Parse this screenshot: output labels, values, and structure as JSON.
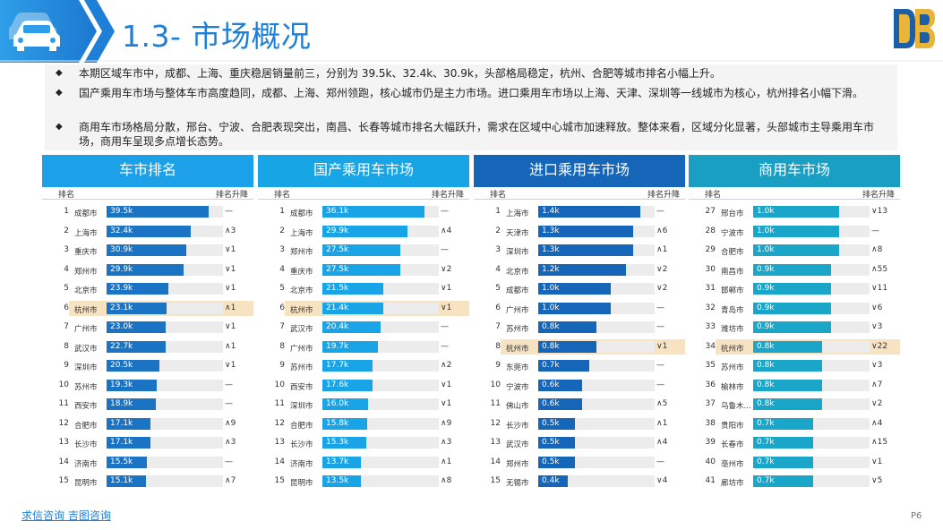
{
  "header": {
    "title": "1.3- 市场概况"
  },
  "notes": [
    "本期区域车市中，成都、上海、重庆稳居销量前三，分别为 39.5k、32.4k、30.9k，头部格局稳定，杭州、合肥等城市排名小幅上升。",
    "国产乘用车市场与整体车市高度趋同，成都、上海、郑州领跑，核心城市仍是主力市场。进口乘用车市场以上海、天津、深圳等一线城市为核心，杭州排名小幅下滑。",
    "商用车市场格局分散，邢台、宁波、合肥表现突出，南昌、长春等城市排名大幅跃升，需求在区域中心城市加速释放。整体来看，区域分化显著，头部城市主导乘用车市场，商用车呈现多点增长态势。"
  ],
  "icons": {
    "car": "car-icon",
    "logo": "brand-logo-icon",
    "bullet": "diamond-bullet-icon"
  },
  "colors": {
    "accent": "#1e7fd6",
    "highlight": "#f7e3c2"
  },
  "chart_data": [
    {
      "type": "bar",
      "title": "车市排名",
      "rank_label": "排名",
      "change_label": "排名升降",
      "header_color": "#1ca0e8",
      "bar_color": "#1b73c4",
      "highlight_city": "杭州市",
      "xlim": [
        0,
        45
      ],
      "rows": [
        {
          "rank": "1",
          "city": "成都市",
          "value": 39.5,
          "label": "39.5k",
          "change": "—"
        },
        {
          "rank": "2",
          "city": "上海市",
          "value": 32.4,
          "label": "32.4k",
          "change": "∧3"
        },
        {
          "rank": "3",
          "city": "重庆市",
          "value": 30.9,
          "label": "30.9k",
          "change": "∨1"
        },
        {
          "rank": "4",
          "city": "郑州市",
          "value": 29.9,
          "label": "29.9k",
          "change": "∨1"
        },
        {
          "rank": "5",
          "city": "北京市",
          "value": 23.9,
          "label": "23.9k",
          "change": "∨1"
        },
        {
          "rank": "6",
          "city": "杭州市",
          "value": 23.1,
          "label": "23.1k",
          "change": "∧1"
        },
        {
          "rank": "7",
          "city": "广州市",
          "value": 23.0,
          "label": "23.0k",
          "change": "∨1"
        },
        {
          "rank": "8",
          "city": "武汉市",
          "value": 22.7,
          "label": "22.7k",
          "change": "∧1"
        },
        {
          "rank": "9",
          "city": "深圳市",
          "value": 20.5,
          "label": "20.5k",
          "change": "∨1"
        },
        {
          "rank": "10",
          "city": "苏州市",
          "value": 19.3,
          "label": "19.3k",
          "change": "—"
        },
        {
          "rank": "11",
          "city": "西安市",
          "value": 18.9,
          "label": "18.9k",
          "change": "—"
        },
        {
          "rank": "12",
          "city": "合肥市",
          "value": 17.1,
          "label": "17.1k",
          "change": "∧9"
        },
        {
          "rank": "13",
          "city": "长沙市",
          "value": 17.1,
          "label": "17.1k",
          "change": "∧3"
        },
        {
          "rank": "14",
          "city": "济南市",
          "value": 15.5,
          "label": "15.5k",
          "change": "—"
        },
        {
          "rank": "15",
          "city": "昆明市",
          "value": 15.1,
          "label": "15.1k",
          "change": "∧7"
        }
      ]
    },
    {
      "type": "bar",
      "title": "国产乘用车市场",
      "rank_label": "排名",
      "change_label": "排名升降",
      "header_color": "#17a5e6",
      "bar_color": "#1aa4e8",
      "highlight_city": "杭州市",
      "xlim": [
        0,
        41
      ],
      "rows": [
        {
          "rank": "1",
          "city": "成都市",
          "value": 36.1,
          "label": "36.1k",
          "change": "—"
        },
        {
          "rank": "2",
          "city": "上海市",
          "value": 29.9,
          "label": "29.9k",
          "change": "∧4"
        },
        {
          "rank": "3",
          "city": "郑州市",
          "value": 27.5,
          "label": "27.5k",
          "change": "—"
        },
        {
          "rank": "4",
          "city": "重庆市",
          "value": 27.5,
          "label": "27.5k",
          "change": "∨2"
        },
        {
          "rank": "5",
          "city": "北京市",
          "value": 21.5,
          "label": "21.5k",
          "change": "∨1"
        },
        {
          "rank": "6",
          "city": "杭州市",
          "value": 21.4,
          "label": "21.4k",
          "change": "∨1"
        },
        {
          "rank": "7",
          "city": "武汉市",
          "value": 20.4,
          "label": "20.4k",
          "change": "—"
        },
        {
          "rank": "8",
          "city": "广州市",
          "value": 19.7,
          "label": "19.7k",
          "change": "—"
        },
        {
          "rank": "9",
          "city": "苏州市",
          "value": 17.7,
          "label": "17.7k",
          "change": "∧2"
        },
        {
          "rank": "10",
          "city": "西安市",
          "value": 17.6,
          "label": "17.6k",
          "change": "∨1"
        },
        {
          "rank": "11",
          "city": "深圳市",
          "value": 16.0,
          "label": "16.0k",
          "change": "∨1"
        },
        {
          "rank": "12",
          "city": "合肥市",
          "value": 15.8,
          "label": "15.8k",
          "change": "∧9"
        },
        {
          "rank": "13",
          "city": "长沙市",
          "value": 15.3,
          "label": "15.3k",
          "change": "∧3"
        },
        {
          "rank": "14",
          "city": "济南市",
          "value": 13.7,
          "label": "13.7k",
          "change": "∧1"
        },
        {
          "rank": "15",
          "city": "昆明市",
          "value": 13.5,
          "label": "13.5k",
          "change": "∧8"
        }
      ]
    },
    {
      "type": "bar",
      "title": "进口乘用车市场",
      "rank_label": "排名",
      "change_label": "排名升降",
      "header_color": "#1565b8",
      "bar_color": "#1565b8",
      "highlight_city": "杭州市",
      "xlim": [
        0,
        1.6
      ],
      "rows": [
        {
          "rank": "1",
          "city": "上海市",
          "value": 1.4,
          "label": "1.4k",
          "change": "—"
        },
        {
          "rank": "2",
          "city": "天津市",
          "value": 1.3,
          "label": "1.3k",
          "change": "∧6"
        },
        {
          "rank": "3",
          "city": "深圳市",
          "value": 1.3,
          "label": "1.3k",
          "change": "∧1"
        },
        {
          "rank": "4",
          "city": "北京市",
          "value": 1.2,
          "label": "1.2k",
          "change": "∨2"
        },
        {
          "rank": "5",
          "city": "成都市",
          "value": 1.0,
          "label": "1.0k",
          "change": "∨2"
        },
        {
          "rank": "6",
          "city": "广州市",
          "value": 1.0,
          "label": "1.0k",
          "change": "—"
        },
        {
          "rank": "7",
          "city": "苏州市",
          "value": 0.8,
          "label": "0.8k",
          "change": "—"
        },
        {
          "rank": "8",
          "city": "杭州市",
          "value": 0.8,
          "label": "0.8k",
          "change": "∨1"
        },
        {
          "rank": "9",
          "city": "东莞市",
          "value": 0.7,
          "label": "0.7k",
          "change": "—"
        },
        {
          "rank": "10",
          "city": "宁波市",
          "value": 0.6,
          "label": "0.6k",
          "change": "—"
        },
        {
          "rank": "11",
          "city": "佛山市",
          "value": 0.6,
          "label": "0.6k",
          "change": "∧5"
        },
        {
          "rank": "12",
          "city": "长沙市",
          "value": 0.5,
          "label": "0.5k",
          "change": "∧1"
        },
        {
          "rank": "13",
          "city": "武汉市",
          "value": 0.5,
          "label": "0.5k",
          "change": "∧4"
        },
        {
          "rank": "14",
          "city": "郑州市",
          "value": 0.5,
          "label": "0.5k",
          "change": "—"
        },
        {
          "rank": "15",
          "city": "无锡市",
          "value": 0.4,
          "label": "0.4k",
          "change": "∨4"
        }
      ]
    },
    {
      "type": "bar",
      "title": "商用车市场",
      "rank_label": "排名",
      "change_label": "排名升降",
      "header_color": "#1a9fc4",
      "bar_color": "#1aa6c8",
      "highlight_city": "杭州市",
      "xlim": [
        0,
        1.35
      ],
      "rows": [
        {
          "rank": "27",
          "city": "邢台市",
          "value": 1.0,
          "label": "1.0k",
          "change": "∨13"
        },
        {
          "rank": "28",
          "city": "宁波市",
          "value": 1.0,
          "label": "1.0k",
          "change": "—"
        },
        {
          "rank": "29",
          "city": "合肥市",
          "value": 1.0,
          "label": "1.0k",
          "change": "∧8"
        },
        {
          "rank": "30",
          "city": "南昌市",
          "value": 0.9,
          "label": "0.9k",
          "change": "∧55"
        },
        {
          "rank": "31",
          "city": "邯郸市",
          "value": 0.9,
          "label": "0.9k",
          "change": "∨11"
        },
        {
          "rank": "32",
          "city": "青岛市",
          "value": 0.9,
          "label": "0.9k",
          "change": "∨6"
        },
        {
          "rank": "33",
          "city": "潍坊市",
          "value": 0.9,
          "label": "0.9k",
          "change": "∨3"
        },
        {
          "rank": "34",
          "city": "杭州市",
          "value": 0.8,
          "label": "0.8k",
          "change": "∨22"
        },
        {
          "rank": "35",
          "city": "苏州市",
          "value": 0.8,
          "label": "0.8k",
          "change": "∨3"
        },
        {
          "rank": "36",
          "city": "榆林市",
          "value": 0.8,
          "label": "0.8k",
          "change": "∧7"
        },
        {
          "rank": "37",
          "city": "乌鲁木...",
          "value": 0.8,
          "label": "0.8k",
          "change": "∨2"
        },
        {
          "rank": "38",
          "city": "贵阳市",
          "value": 0.7,
          "label": "0.7k",
          "change": "∧4"
        },
        {
          "rank": "39",
          "city": "长春市",
          "value": 0.7,
          "label": "0.7k",
          "change": "∧15"
        },
        {
          "rank": "40",
          "city": "亳州市",
          "value": 0.7,
          "label": "0.7k",
          "change": "∨1"
        },
        {
          "rank": "41",
          "city": "廊坊市",
          "value": 0.7,
          "label": "0.7k",
          "change": "∨5"
        }
      ]
    }
  ],
  "footer": {
    "source": "求信咨询 吉图咨询",
    "page": "P6"
  }
}
